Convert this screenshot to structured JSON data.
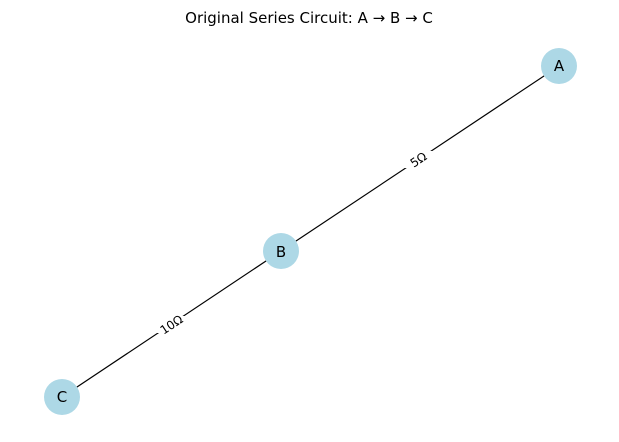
{
  "title": "Original Series Circuit: A → B → C",
  "colors": {
    "node_fill": "#add8e6",
    "edge_stroke": "#000000",
    "background": "#ffffff"
  },
  "nodes": [
    {
      "id": "A",
      "label": "A"
    },
    {
      "id": "B",
      "label": "B"
    },
    {
      "id": "C",
      "label": "C"
    }
  ],
  "edges": [
    {
      "from": "A",
      "to": "B",
      "label": "5Ω"
    },
    {
      "from": "B",
      "to": "C",
      "label": "10Ω"
    }
  ]
}
